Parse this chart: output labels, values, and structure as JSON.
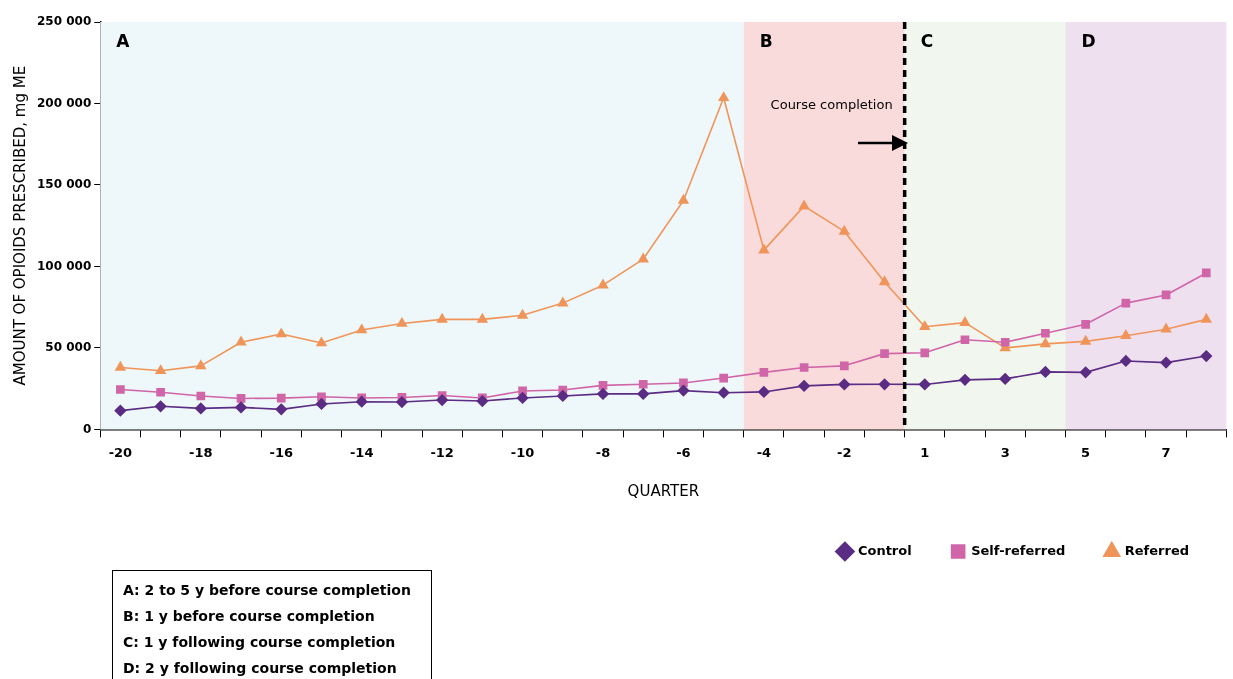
{
  "chart_data": {
    "type": "line",
    "xlabel": "QUARTER",
    "ylabel": "AMOUNT OF OPIOIDS PRESCRIBED, mg ME",
    "categories": [
      "-20",
      null,
      "-18",
      null,
      "-16",
      null,
      "-14",
      null,
      "-12",
      null,
      "-10",
      null,
      "-8",
      null,
      "-6",
      null,
      "-4",
      null,
      "-2",
      null,
      "1",
      null,
      "3",
      null,
      "5",
      null,
      "7",
      null
    ],
    "ylim": [
      0,
      250000
    ],
    "yticks": [
      0,
      {
        "value": 50000,
        "label": "50 000"
      },
      {
        "value": 100000,
        "label": "100 000"
      },
      {
        "value": 150000,
        "label": "150 000"
      },
      {
        "value": 200000,
        "label": "200 000"
      },
      {
        "value": 250000,
        "label": "250 000"
      }
    ],
    "series": [
      {
        "name": "Control",
        "color": "#5b2c83",
        "marker": "diamond",
        "values": [
          11500,
          14200,
          12900,
          13500,
          12300,
          15600,
          17000,
          16800,
          18000,
          17400,
          19300,
          20500,
          21800,
          21800,
          23800,
          22500,
          23000,
          26700,
          27600,
          27700,
          27600,
          30400,
          31000,
          35300,
          35000,
          42000,
          41000,
          45000
        ]
      },
      {
        "name": "Self-referred",
        "color": "#d065a8",
        "marker": "square",
        "values": [
          24500,
          22800,
          20500,
          19000,
          19200,
          20000,
          19300,
          19600,
          20800,
          19300,
          23600,
          24200,
          27000,
          27700,
          28500,
          31500,
          35000,
          38000,
          39000,
          46500,
          47000,
          55000,
          53500,
          59000,
          64500,
          77500,
          82500,
          96000
        ]
      },
      {
        "name": "Referred",
        "color": "#f0955a",
        "marker": "triangle",
        "values": [
          38000,
          36000,
          39000,
          53500,
          58500,
          53000,
          61000,
          65000,
          67500,
          67500,
          70000,
          77500,
          88500,
          104500,
          140500,
          203500,
          110000,
          137000,
          121500,
          90500,
          63000,
          65500,
          50000,
          52500,
          54000,
          57500,
          61500,
          67500
        ]
      }
    ],
    "annotations": [
      "A: 2 to 5 y before course completion",
      "B: 1 y before course completion",
      "C: 1 y following course completion",
      "D: 2 y following course completion",
      "A",
      "B",
      "C",
      "D",
      "Course completion"
    ],
    "legend": "bottom right",
    "grid": false
  }
}
